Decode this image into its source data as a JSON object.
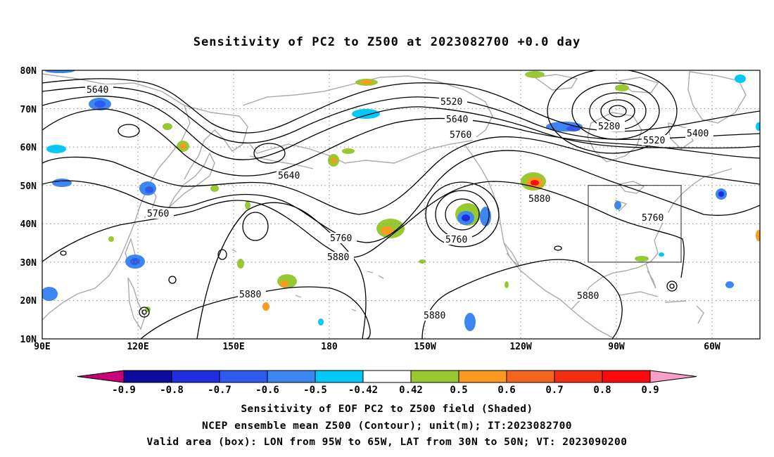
{
  "title": "Sensitivity of PC2 to Z500 at 2023082700 +0.0 day",
  "lat_labels": [
    "80N",
    "70N",
    "60N",
    "50N",
    "40N",
    "30N",
    "20N",
    "10N"
  ],
  "lon_labels": [
    "90E",
    "120E",
    "150E",
    "180",
    "150W",
    "120W",
    "90W",
    "60W"
  ],
  "contour_labels": [
    "5640",
    "5520",
    "5640",
    "5760",
    "5280",
    "5400",
    "5520",
    "5640",
    "5760",
    "5760",
    "5760",
    "5880",
    "5880",
    "5760",
    "5880",
    "5880",
    "5880"
  ],
  "colorbar": {
    "labels": [
      "-0.9",
      "-0.8",
      "-0.7",
      "-0.6",
      "-0.5",
      "-0.42",
      "0.42",
      "0.5",
      "0.6",
      "0.7",
      "0.8",
      "0.9"
    ],
    "colors": [
      "#c8007a",
      "#0b0ba0",
      "#1e2ee0",
      "#2e5af0",
      "#3c86f2",
      "#00c8f8",
      "#ffffff",
      "#98c832",
      "#fa9a1e",
      "#f4641c",
      "#f22e10",
      "#fa0a0a",
      "#f8a0c8"
    ]
  },
  "captions": [
    "Sensitivity of EOF PC2 to Z500 field (Shaded)",
    "NCEP ensemble mean Z500 (Contour); unit(m); IT:2023082700",
    "Valid area (box): LON from 95W to 65W, LAT from 30N to 50N; VT: 2023090200"
  ]
}
